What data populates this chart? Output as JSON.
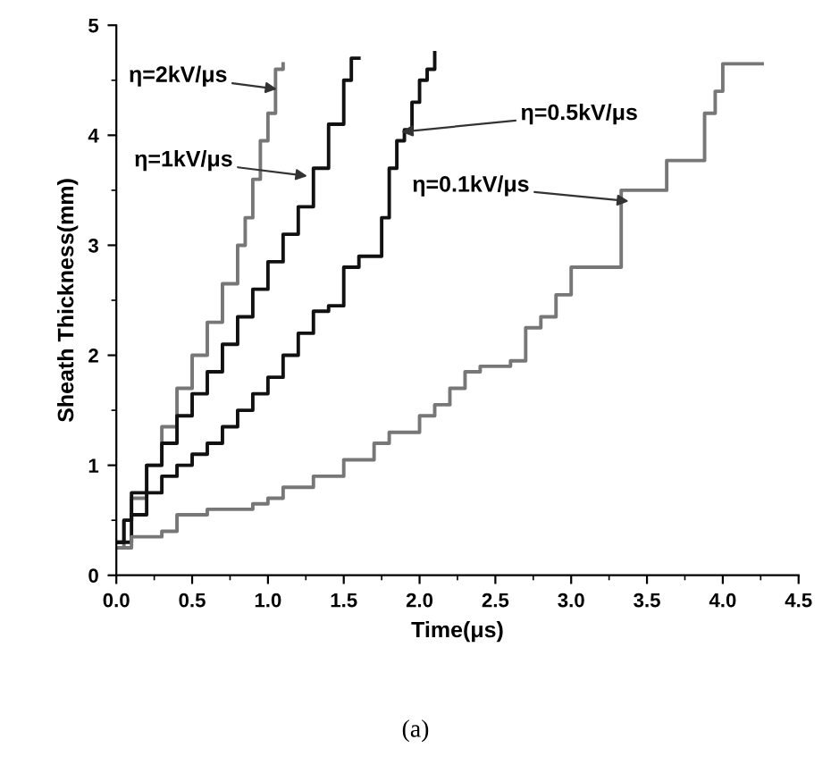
{
  "chart_data": {
    "type": "step",
    "xlabel": "Time(μs)",
    "ylabel": "Sheath Thickness(mm)",
    "xlim": [
      0,
      4.5
    ],
    "xticks": [
      {
        "value": 0,
        "label": "0.0"
      },
      0.5,
      {
        "value": 1,
        "label": "1.0"
      },
      1.5,
      {
        "value": 2,
        "label": "2.0"
      },
      2.5,
      {
        "value": 3,
        "label": "3.0"
      },
      3.5,
      {
        "value": 4,
        "label": "4.0"
      },
      4.5
    ],
    "ylim": [
      0,
      5
    ],
    "yticks": [
      0,
      1,
      2,
      3,
      4,
      5
    ],
    "grid": false,
    "legend": false,
    "series": [
      {
        "color": "#777777",
        "x": [
          0,
          0.05,
          0.1,
          0.2,
          0.3,
          0.4,
          0.5,
          0.6,
          0.7,
          0.8,
          0.85,
          0.9,
          0.95,
          1.0,
          1.05,
          1.1
        ],
        "values": [
          0.25,
          0.5,
          0.7,
          1.0,
          1.35,
          1.7,
          2.0,
          2.3,
          2.65,
          3.0,
          3.25,
          3.6,
          3.95,
          4.2,
          4.6,
          4.65
        ]
      },
      {
        "color": "#111111",
        "x": [
          0,
          0.05,
          0.1,
          0.2,
          0.3,
          0.4,
          0.5,
          0.6,
          0.7,
          0.8,
          0.9,
          1.0,
          1.1,
          1.2,
          1.3,
          1.4,
          1.5,
          1.55,
          1.6
        ],
        "values": [
          0.3,
          0.5,
          0.75,
          1.0,
          1.2,
          1.45,
          1.65,
          1.85,
          2.1,
          2.35,
          2.6,
          2.85,
          3.1,
          3.35,
          3.7,
          4.1,
          4.5,
          4.7,
          4.7
        ]
      },
      {
        "color": "#111111",
        "x": [
          0,
          0.1,
          0.2,
          0.3,
          0.4,
          0.5,
          0.6,
          0.7,
          0.8,
          0.9,
          1.0,
          1.1,
          1.2,
          1.3,
          1.4,
          1.5,
          1.6,
          1.7,
          1.75,
          1.8,
          1.85,
          1.9,
          1.95,
          2.0,
          2.05,
          2.1
        ],
        "values": [
          0.3,
          0.55,
          0.75,
          0.9,
          1.0,
          1.1,
          1.2,
          1.35,
          1.5,
          1.65,
          1.8,
          2.0,
          2.2,
          2.4,
          2.45,
          2.8,
          2.9,
          2.9,
          3.25,
          3.7,
          3.95,
          4.05,
          4.3,
          4.5,
          4.6,
          4.75
        ]
      },
      {
        "color": "#777777",
        "x": [
          0,
          0.1,
          0.3,
          0.4,
          0.5,
          0.6,
          0.9,
          1.0,
          1.1,
          1.3,
          1.5,
          1.7,
          1.8,
          2.0,
          2.1,
          2.2,
          2.3,
          2.4,
          2.6,
          2.7,
          2.8,
          2.9,
          3.0,
          3.33,
          3.63,
          3.85,
          3.88,
          3.95,
          4.0,
          4.26
        ],
        "values": [
          0.25,
          0.35,
          0.4,
          0.55,
          0.55,
          0.6,
          0.65,
          0.7,
          0.8,
          0.9,
          1.05,
          1.2,
          1.3,
          1.45,
          1.55,
          1.7,
          1.85,
          1.9,
          1.95,
          2.25,
          2.35,
          2.55,
          2.8,
          3.5,
          3.77,
          3.77,
          4.2,
          4.4,
          4.65,
          4.65
        ]
      }
    ],
    "annotations": [
      {
        "text": "η=2kV/μs",
        "x": 1.06,
        "y": 4.42
      },
      {
        "text": "η=1kV/μs",
        "x": 1.26,
        "y": 3.63
      },
      {
        "text": "η=0.5kV/μs",
        "x": 1.88,
        "y": 4.03
      },
      {
        "text": "η=0.1kV/μs",
        "x": 3.38,
        "y": 3.4
      },
      "(a)"
    ]
  }
}
